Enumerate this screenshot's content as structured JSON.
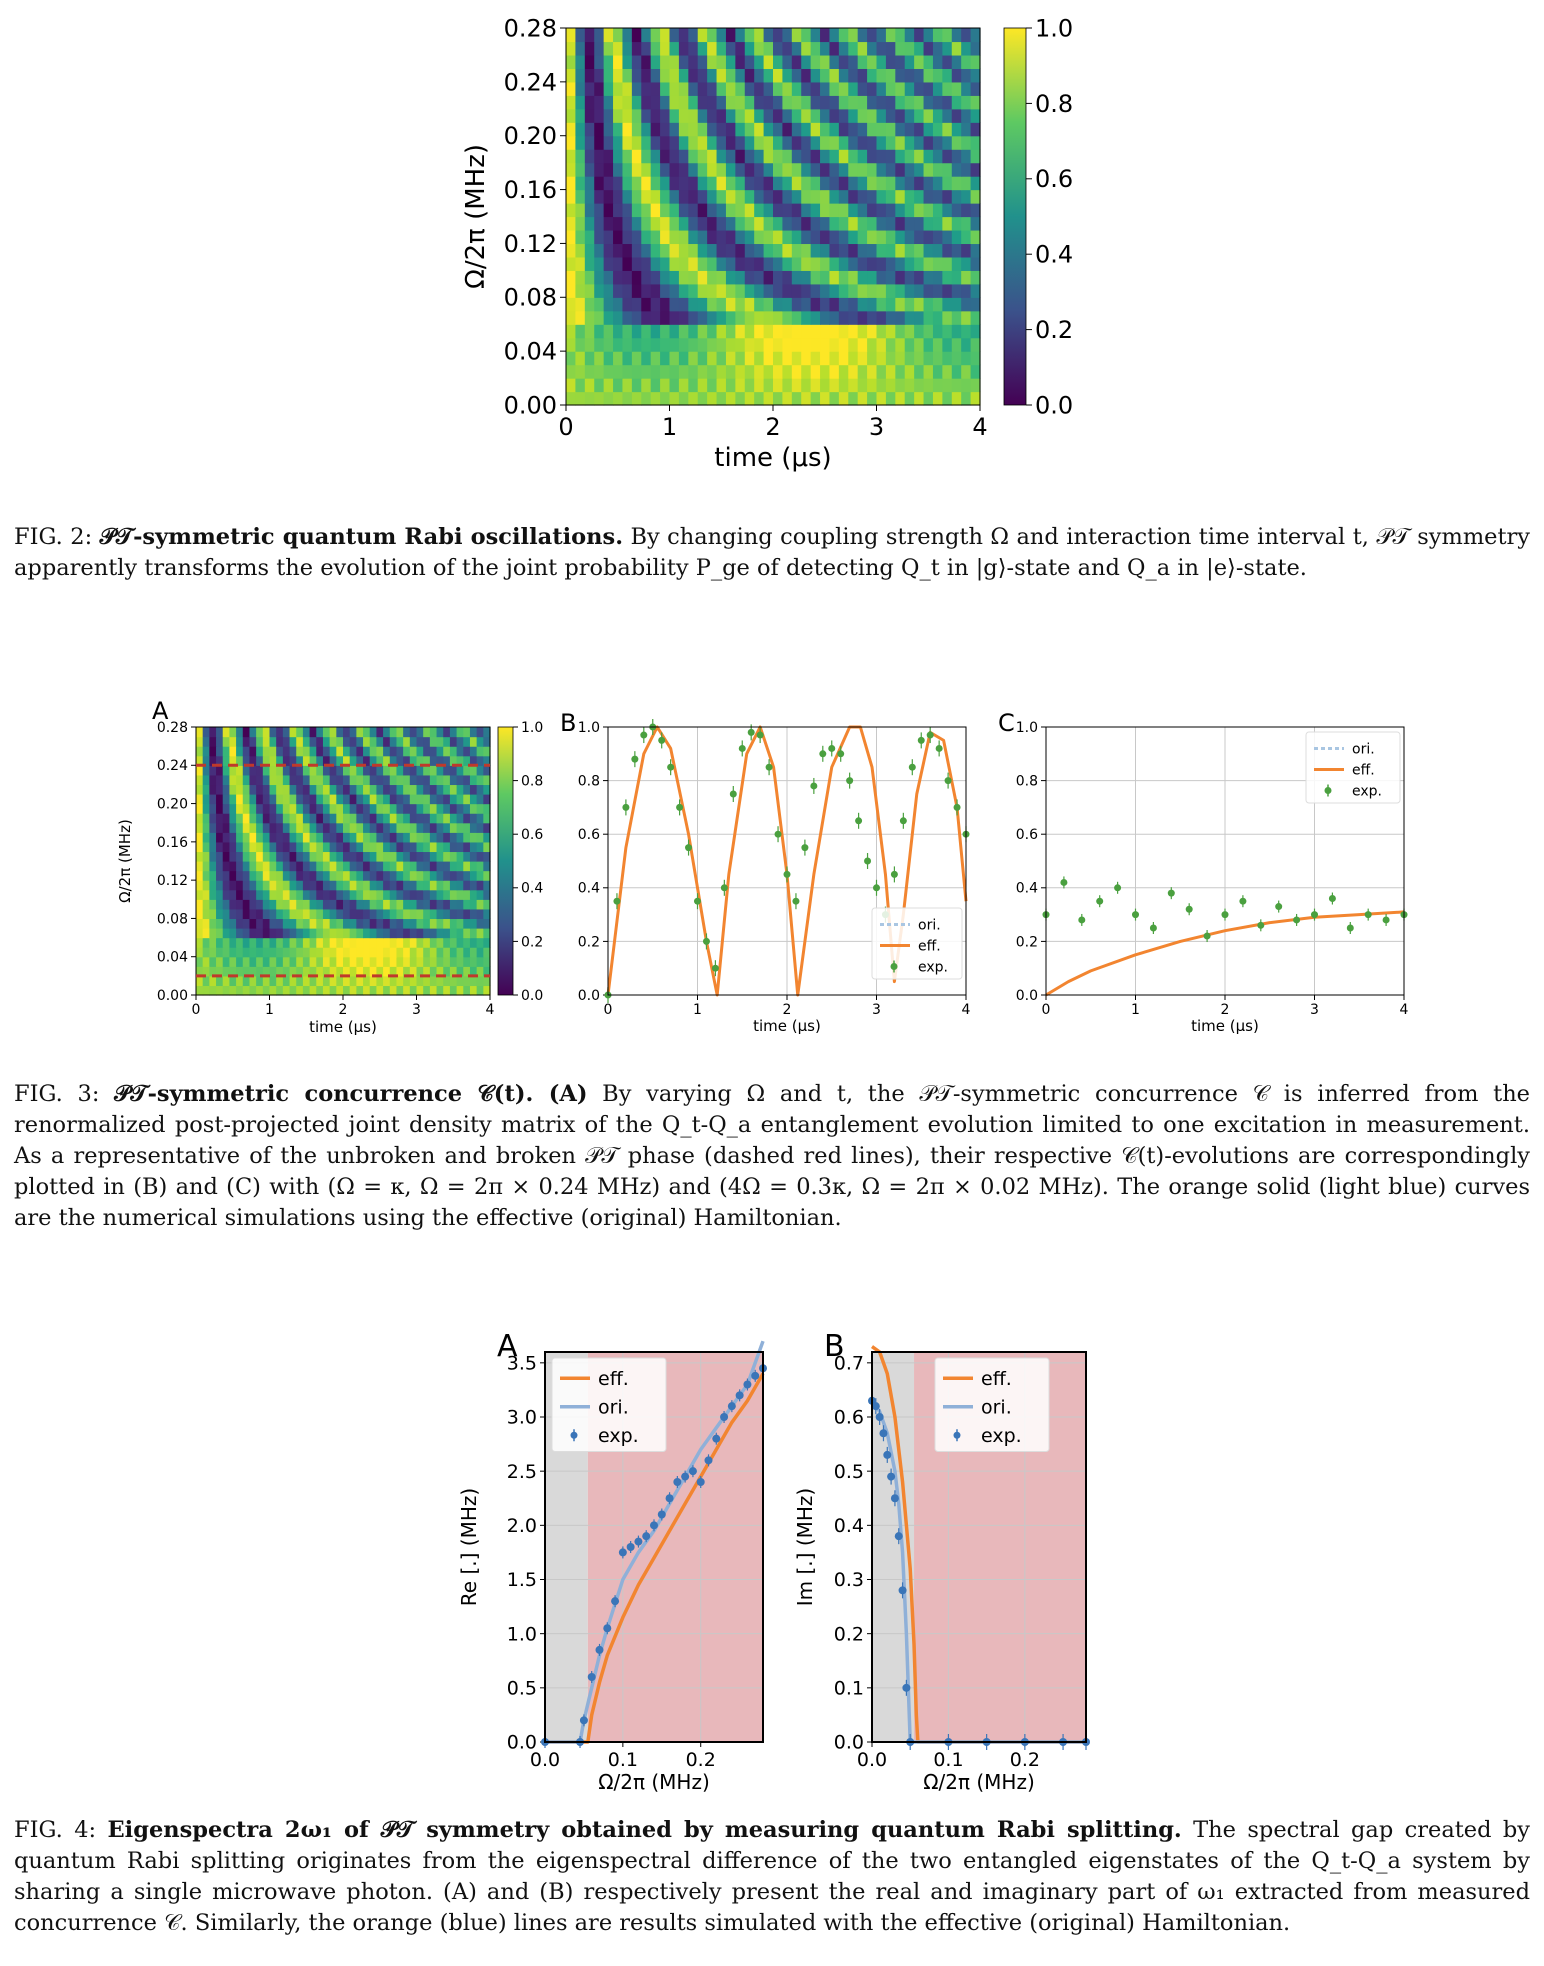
{
  "fig2": {
    "caption": {
      "label": "FIG. 2: ",
      "bold": "𝒫𝒯-symmetric quantum Rabi oscillations.",
      "body": " By changing coupling strength Ω and interaction time interval t, 𝒫𝒯 symmetry apparently transforms the evolution of the joint probability P_ge of detecting Q_t in |g⟩-state and Q_a in |e⟩-state."
    }
  },
  "fig3": {
    "caption": {
      "label": "FIG. 3: ",
      "bold": "𝒫𝒯-symmetric concurrence 𝒞(t). (A)",
      "body": " By varying Ω and t, the 𝒫𝒯-symmetric concurrence 𝒞 is inferred from the renormalized post-projected joint density matrix of the Q_t-Q_a entanglement evolution limited to one excitation in measurement. As a representative of the unbroken and broken 𝒫𝒯 phase (dashed red lines), their respective 𝒞(t)-evolutions are correspondingly plotted in (B) and (C) with (Ω = κ, Ω = 2π × 0.24 MHz) and (4Ω = 0.3κ, Ω = 2π × 0.02 MHz). The orange solid (light blue) curves are the numerical simulations using the effective (original) Hamiltonian."
    }
  },
  "fig4": {
    "caption": {
      "label": "FIG. 4: ",
      "bold": "Eigenspectra 2ω₁ of 𝒫𝒯 symmetry obtained by measuring quantum Rabi splitting.",
      "body": " The spectral gap created by quantum Rabi splitting originates from the eigenspectral difference of the two entangled eigenstates of the Q_t-Q_a system by sharing a single microwave photon. (A) and (B) respectively present the real and imaginary part of ω₁ extracted from measured concurrence 𝒞. Similarly, the orange (blue) lines are results simulated with the effective (original) Hamiltonian."
    }
  },
  "chart_data": [
    {
      "id": "fig2",
      "type": "heatmap",
      "xlabel": "time (μs)",
      "ylabel": "Ω/2π (MHz)",
      "xticks": [
        "0",
        "1",
        "2",
        "3",
        "4"
      ],
      "yticks": [
        "0.00",
        "0.04",
        "0.08",
        "0.12",
        "0.16",
        "0.20",
        "0.24",
        "0.28"
      ],
      "xlim": [
        0,
        4
      ],
      "ylim": [
        0,
        0.28
      ],
      "colorbar_ticks": [
        "0.0",
        "0.2",
        "0.4",
        "0.6",
        "0.8",
        "1.0"
      ],
      "colorbar_range": [
        0,
        1
      ],
      "colormap": "viridis"
    },
    {
      "id": "fig3A",
      "panel_label": "A",
      "type": "heatmap",
      "xlabel": "time (μs)",
      "ylabel": "Ω/2π (MHz)",
      "xticks": [
        "0",
        "1",
        "2",
        "3",
        "4"
      ],
      "yticks": [
        "0.00",
        "0.04",
        "0.08",
        "0.12",
        "0.16",
        "0.20",
        "0.24",
        "0.28"
      ],
      "xlim": [
        0,
        4
      ],
      "ylim": [
        0,
        0.28
      ],
      "colorbar_ticks": [
        "0.0",
        "0.2",
        "0.4",
        "0.6",
        "0.8",
        "1.0"
      ],
      "dashed_lines_y": [
        0.24,
        0.02
      ],
      "dashed_color": "#c0392b",
      "colormap": "viridis"
    },
    {
      "id": "fig3B",
      "panel_label": "B",
      "type": "line",
      "xlabel": "time (μs)",
      "xticks": [
        "0",
        "1",
        "2",
        "3",
        "4"
      ],
      "yticks": [
        "0.0",
        "0.2",
        "0.4",
        "0.6",
        "0.8",
        "1.0"
      ],
      "xlim": [
        0,
        4
      ],
      "ylim": [
        0,
        1
      ],
      "legend": [
        "ori.",
        "eff.",
        "exp."
      ],
      "legend_position": "lower-right",
      "series": [
        {
          "name": "eff.",
          "color": "#f28530",
          "x": [
            0,
            0.2,
            0.4,
            0.55,
            0.7,
            0.9,
            1.1,
            1.22,
            1.35,
            1.55,
            1.7,
            1.85,
            2.0,
            2.12,
            2.3,
            2.5,
            2.7,
            2.82,
            2.95,
            3.1,
            3.2,
            3.3,
            3.45,
            3.6,
            3.75,
            3.9,
            4.0
          ],
          "y": [
            0,
            0.55,
            0.9,
            1.0,
            0.92,
            0.6,
            0.2,
            0,
            0.45,
            0.9,
            1.0,
            0.85,
            0.45,
            0,
            0.45,
            0.85,
            1.0,
            1.0,
            0.85,
            0.45,
            0.05,
            0.3,
            0.75,
            0.98,
            0.95,
            0.7,
            0.35
          ]
        },
        {
          "name": "exp.",
          "color": "#4aa03f",
          "x": [
            0,
            0.1,
            0.2,
            0.3,
            0.4,
            0.5,
            0.6,
            0.7,
            0.8,
            0.9,
            1.0,
            1.1,
            1.2,
            1.3,
            1.4,
            1.5,
            1.6,
            1.7,
            1.8,
            1.9,
            2.0,
            2.1,
            2.2,
            2.3,
            2.4,
            2.5,
            2.6,
            2.7,
            2.8,
            2.9,
            3.0,
            3.1,
            3.2,
            3.3,
            3.4,
            3.5,
            3.6,
            3.7,
            3.8,
            3.9,
            4.0
          ],
          "y": [
            0,
            0.35,
            0.7,
            0.88,
            0.97,
            1.0,
            0.95,
            0.85,
            0.7,
            0.55,
            0.35,
            0.2,
            0.1,
            0.4,
            0.75,
            0.92,
            0.98,
            0.97,
            0.85,
            0.6,
            0.45,
            0.35,
            0.55,
            0.78,
            0.9,
            0.92,
            0.9,
            0.8,
            0.65,
            0.5,
            0.4,
            0.3,
            0.45,
            0.65,
            0.85,
            0.95,
            0.97,
            0.92,
            0.8,
            0.7,
            0.6
          ]
        }
      ]
    },
    {
      "id": "fig3C",
      "panel_label": "C",
      "type": "line",
      "xlabel": "time (μs)",
      "xticks": [
        "0",
        "1",
        "2",
        "3",
        "4"
      ],
      "yticks": [
        "0.0",
        "0.2",
        "0.4",
        "0.6",
        "0.8",
        "1.0"
      ],
      "xlim": [
        0,
        4
      ],
      "ylim": [
        0,
        1
      ],
      "legend": [
        "ori.",
        "eff.",
        "exp."
      ],
      "legend_position": "upper-right",
      "series": [
        {
          "name": "eff.",
          "color": "#f28530",
          "x": [
            0,
            0.25,
            0.5,
            1.0,
            1.5,
            2.0,
            2.5,
            3.0,
            3.5,
            4.0
          ],
          "y": [
            0,
            0.05,
            0.09,
            0.15,
            0.2,
            0.24,
            0.27,
            0.29,
            0.3,
            0.31
          ]
        },
        {
          "name": "exp.",
          "color": "#4aa03f",
          "x": [
            0,
            0.2,
            0.4,
            0.6,
            0.8,
            1.0,
            1.2,
            1.4,
            1.6,
            1.8,
            2.0,
            2.2,
            2.4,
            2.6,
            2.8,
            3.0,
            3.2,
            3.4,
            3.6,
            3.8,
            4.0
          ],
          "y": [
            0.3,
            0.42,
            0.28,
            0.35,
            0.4,
            0.3,
            0.25,
            0.38,
            0.32,
            0.22,
            0.3,
            0.35,
            0.26,
            0.33,
            0.28,
            0.3,
            0.36,
            0.25,
            0.3,
            0.28,
            0.3
          ]
        }
      ]
    },
    {
      "id": "fig4A",
      "panel_label": "A",
      "type": "line",
      "xlabel": "Ω/2π (MHz)",
      "ylabel": "Re [.] (MHz)",
      "xticks": [
        "0.0",
        "0.1",
        "0.2"
      ],
      "yticks": [
        "0.0",
        "0.5",
        "1.0",
        "1.5",
        "2.0",
        "2.5",
        "3.0",
        "3.5"
      ],
      "xlim": [
        0,
        0.28
      ],
      "ylim": [
        0,
        3.6
      ],
      "legend": [
        "eff.",
        "ori.",
        "exp."
      ],
      "legend_position": "upper-left",
      "series": [
        {
          "name": "eff.",
          "color": "#f28530",
          "x": [
            0,
            0.055,
            0.06,
            0.07,
            0.08,
            0.1,
            0.12,
            0.14,
            0.16,
            0.18,
            0.2,
            0.22,
            0.24,
            0.26,
            0.28
          ],
          "y": [
            0,
            0,
            0.25,
            0.55,
            0.8,
            1.15,
            1.45,
            1.7,
            1.95,
            2.2,
            2.45,
            2.7,
            2.95,
            3.15,
            3.4
          ]
        },
        {
          "name": "ori.",
          "color": "#8fb0d8",
          "x": [
            0,
            0.045,
            0.05,
            0.06,
            0.07,
            0.08,
            0.1,
            0.12,
            0.14,
            0.16,
            0.18,
            0.2,
            0.22,
            0.24,
            0.26,
            0.27,
            0.28
          ],
          "y": [
            0,
            0,
            0.2,
            0.5,
            0.8,
            1.05,
            1.5,
            1.75,
            1.95,
            2.2,
            2.45,
            2.7,
            2.9,
            3.1,
            3.3,
            3.5,
            3.7
          ]
        },
        {
          "name": "exp.",
          "color": "#3a75b8",
          "x": [
            0,
            0.045,
            0.05,
            0.06,
            0.07,
            0.08,
            0.09,
            0.1,
            0.11,
            0.12,
            0.13,
            0.14,
            0.15,
            0.16,
            0.17,
            0.18,
            0.19,
            0.2,
            0.21,
            0.22,
            0.23,
            0.24,
            0.25,
            0.26,
            0.27,
            0.28
          ],
          "y": [
            0,
            0,
            0.2,
            0.6,
            0.85,
            1.05,
            1.3,
            1.75,
            1.8,
            1.85,
            1.9,
            2.0,
            2.1,
            2.25,
            2.4,
            2.45,
            2.5,
            2.4,
            2.6,
            2.8,
            3.0,
            3.1,
            3.2,
            3.3,
            3.38,
            3.45
          ]
        }
      ]
    },
    {
      "id": "fig4B",
      "panel_label": "B",
      "type": "line",
      "xlabel": "Ω/2π (MHz)",
      "ylabel": "Im [.] (MHz)",
      "xticks": [
        "0.0",
        "0.1",
        "0.2"
      ],
      "yticks": [
        "0.0",
        "0.1",
        "0.2",
        "0.3",
        "0.4",
        "0.5",
        "0.6",
        "0.7"
      ],
      "xlim": [
        0,
        0.28
      ],
      "ylim": [
        0,
        0.72
      ],
      "legend": [
        "eff.",
        "ori.",
        "exp."
      ],
      "legend_position": "upper-right",
      "series": [
        {
          "name": "eff.",
          "color": "#f28530",
          "x": [
            0,
            0.01,
            0.02,
            0.03,
            0.04,
            0.05,
            0.055,
            0.058,
            0.06,
            0.1,
            0.2,
            0.28
          ],
          "y": [
            0.73,
            0.72,
            0.68,
            0.6,
            0.48,
            0.32,
            0.18,
            0.05,
            0,
            0,
            0,
            0
          ]
        },
        {
          "name": "ori.",
          "color": "#8fb0d8",
          "x": [
            0,
            0.01,
            0.02,
            0.03,
            0.035,
            0.04,
            0.045,
            0.05,
            0.1,
            0.2,
            0.28
          ],
          "y": [
            0.63,
            0.61,
            0.57,
            0.5,
            0.44,
            0.35,
            0.2,
            0,
            0,
            0,
            0
          ]
        },
        {
          "name": "exp.",
          "color": "#3a75b8",
          "x": [
            0,
            0.005,
            0.01,
            0.015,
            0.02,
            0.025,
            0.03,
            0.035,
            0.04,
            0.045,
            0.05,
            0.1,
            0.15,
            0.2,
            0.25,
            0.28
          ],
          "y": [
            0.63,
            0.62,
            0.6,
            0.57,
            0.53,
            0.49,
            0.45,
            0.38,
            0.28,
            0.1,
            0,
            0,
            0,
            0,
            0,
            0
          ]
        }
      ]
    }
  ]
}
